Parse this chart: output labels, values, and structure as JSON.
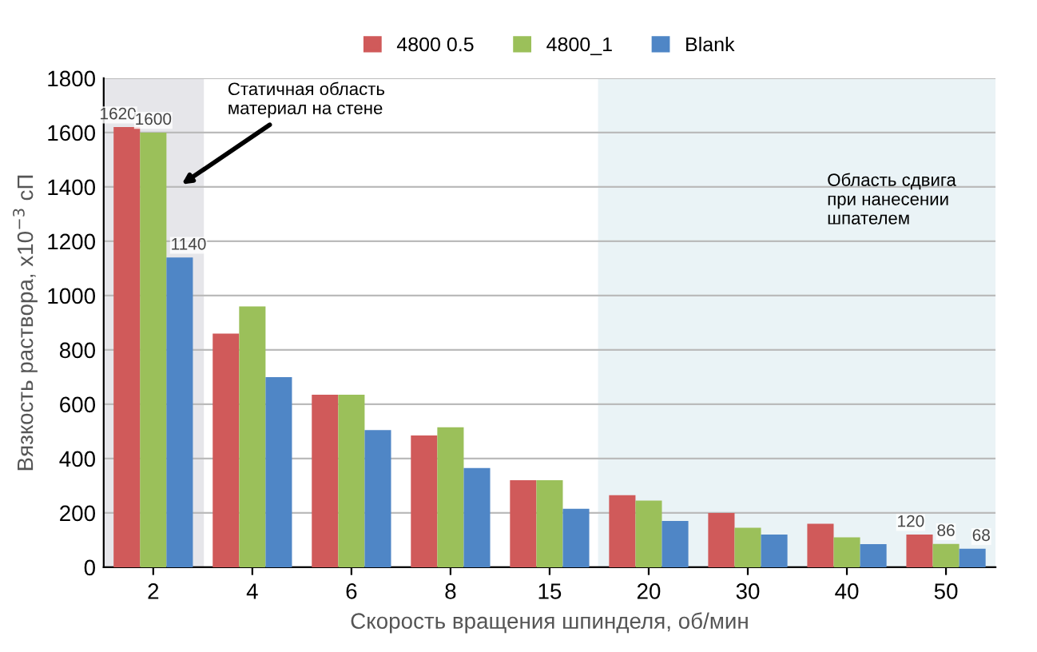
{
  "chart_data": {
    "type": "bar",
    "xlabel": "Скорость вращения шпинделя, об/мин",
    "ylabel": "Вязкость раствора, x10$^{−3}$ сП",
    "categories": [
      "2",
      "4",
      "6",
      "8",
      "15",
      "20",
      "30",
      "40",
      "50"
    ],
    "series": [
      {
        "name": "4800 0.5",
        "color": "#d05a5a",
        "values": [
          1620,
          860,
          635,
          485,
          320,
          265,
          200,
          160,
          120
        ],
        "value_labels": [
          "1620",
          null,
          null,
          null,
          null,
          null,
          null,
          null,
          "120"
        ]
      },
      {
        "name": "4800_1",
        "color": "#9bc05a",
        "values": [
          1600,
          960,
          635,
          515,
          320,
          245,
          145,
          110,
          86
        ],
        "value_labels": [
          "1600",
          null,
          null,
          null,
          null,
          null,
          null,
          null,
          "86"
        ]
      },
      {
        "name": "Blank",
        "color": "#4f86c6",
        "values": [
          1140,
          700,
          505,
          365,
          215,
          170,
          120,
          85,
          68
        ],
        "value_labels": [
          "1140",
          null,
          null,
          null,
          null,
          null,
          null,
          null,
          "68"
        ]
      }
    ],
    "ylim": [
      0,
      1800
    ],
    "yticks": [
      0,
      200,
      400,
      600,
      800,
      1000,
      1200,
      1400,
      1600,
      1800
    ],
    "grid": "y",
    "legend": "top",
    "bands": [
      {
        "axis": "x",
        "from": "2",
        "to": "2",
        "color": "#e6e6ea",
        "label": "Статичная область\nматериал на стене"
      },
      {
        "axis": "x",
        "from": "20",
        "to": "50",
        "color": "#eaf3f6",
        "label": "Область сдвига\nпри нанесении\nшпателем"
      }
    ]
  }
}
